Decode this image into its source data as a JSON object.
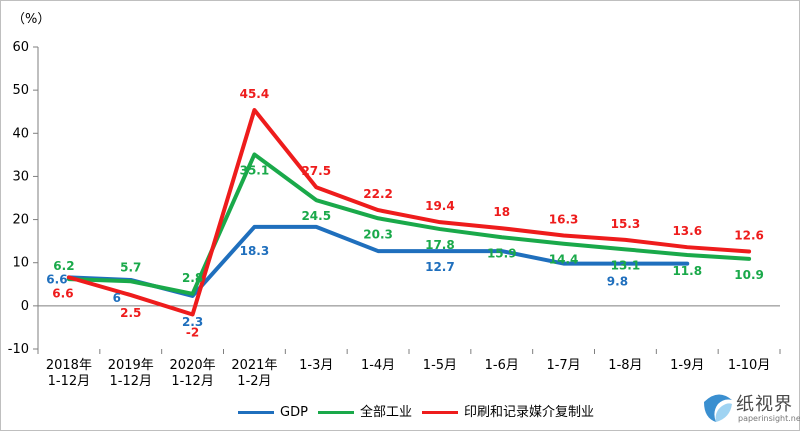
{
  "chart_data": {
    "type": "line",
    "unit_label": "（%）",
    "categories": [
      "2018年\n1-12月",
      "2019年\n1-12月",
      "2020年\n1-12月",
      "2021年\n1-2月",
      "1-3月",
      "1-4月",
      "1-5月",
      "1-6月",
      "1-7月",
      "1-8月",
      "1-9月",
      "1-10月"
    ],
    "ylim": [
      -10,
      60
    ],
    "yticks": [
      -10,
      0,
      10,
      20,
      30,
      40,
      50,
      60
    ],
    "grid": false,
    "legend_position": "bottom",
    "series": [
      {
        "name": "GDP",
        "color": "#1f6fbd",
        "values": [
          6.6,
          6,
          2.3,
          18.3,
          18.3,
          12.7,
          12.7,
          12.7,
          9.8,
          9.8,
          9.8,
          null
        ],
        "labels": [
          "6.6",
          "6",
          "2.3",
          "18.3",
          "",
          "",
          "12.7",
          "",
          "",
          "9.8",
          "",
          ""
        ]
      },
      {
        "name": "全部工业",
        "color": "#1aa94a",
        "values": [
          6.2,
          5.7,
          2.8,
          35.1,
          24.5,
          20.3,
          17.8,
          15.9,
          14.4,
          13.1,
          11.8,
          10.9
        ],
        "labels": [
          "6.2",
          "5.7",
          "2.8",
          "35.1",
          "24.5",
          "20.3",
          "17.8",
          "15.9",
          "14.4",
          "13.1",
          "11.8",
          "10.9"
        ]
      },
      {
        "name": "印刷和记录媒介复制业",
        "color": "#ee1c1c",
        "values": [
          6.6,
          2.5,
          -2,
          45.4,
          27.5,
          22.2,
          19.4,
          18,
          16.3,
          15.3,
          13.6,
          12.6
        ],
        "labels": [
          "6.6",
          "2.5",
          "-2",
          "45.4",
          "27.5",
          "22.2",
          "19.4",
          "18",
          "16.3",
          "15.3",
          "13.6",
          "12.6"
        ]
      }
    ]
  },
  "watermark": {
    "text": "纸视界",
    "url": "paperinsight.net"
  }
}
